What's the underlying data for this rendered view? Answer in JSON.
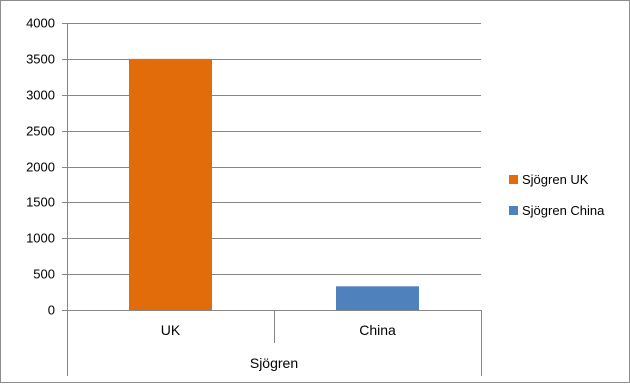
{
  "chart_data": {
    "type": "bar",
    "title": "",
    "xlabel": "",
    "ylabel": "",
    "ylim": [
      0,
      4000
    ],
    "y_ticks": [
      "0",
      "500",
      "1000",
      "1500",
      "2000",
      "2500",
      "3000",
      "3500",
      "4000"
    ],
    "categories": [
      "UK",
      "China"
    ],
    "group_label": "Sjögren",
    "grid": "horizontal",
    "legend_position": "right",
    "series": [
      {
        "name": "Sjögren UK",
        "color": "#e36c0a",
        "values": [
          3500,
          null
        ]
      },
      {
        "name": "Sjögren China",
        "color": "#4f81bd",
        "values": [
          null,
          330
        ]
      }
    ]
  }
}
